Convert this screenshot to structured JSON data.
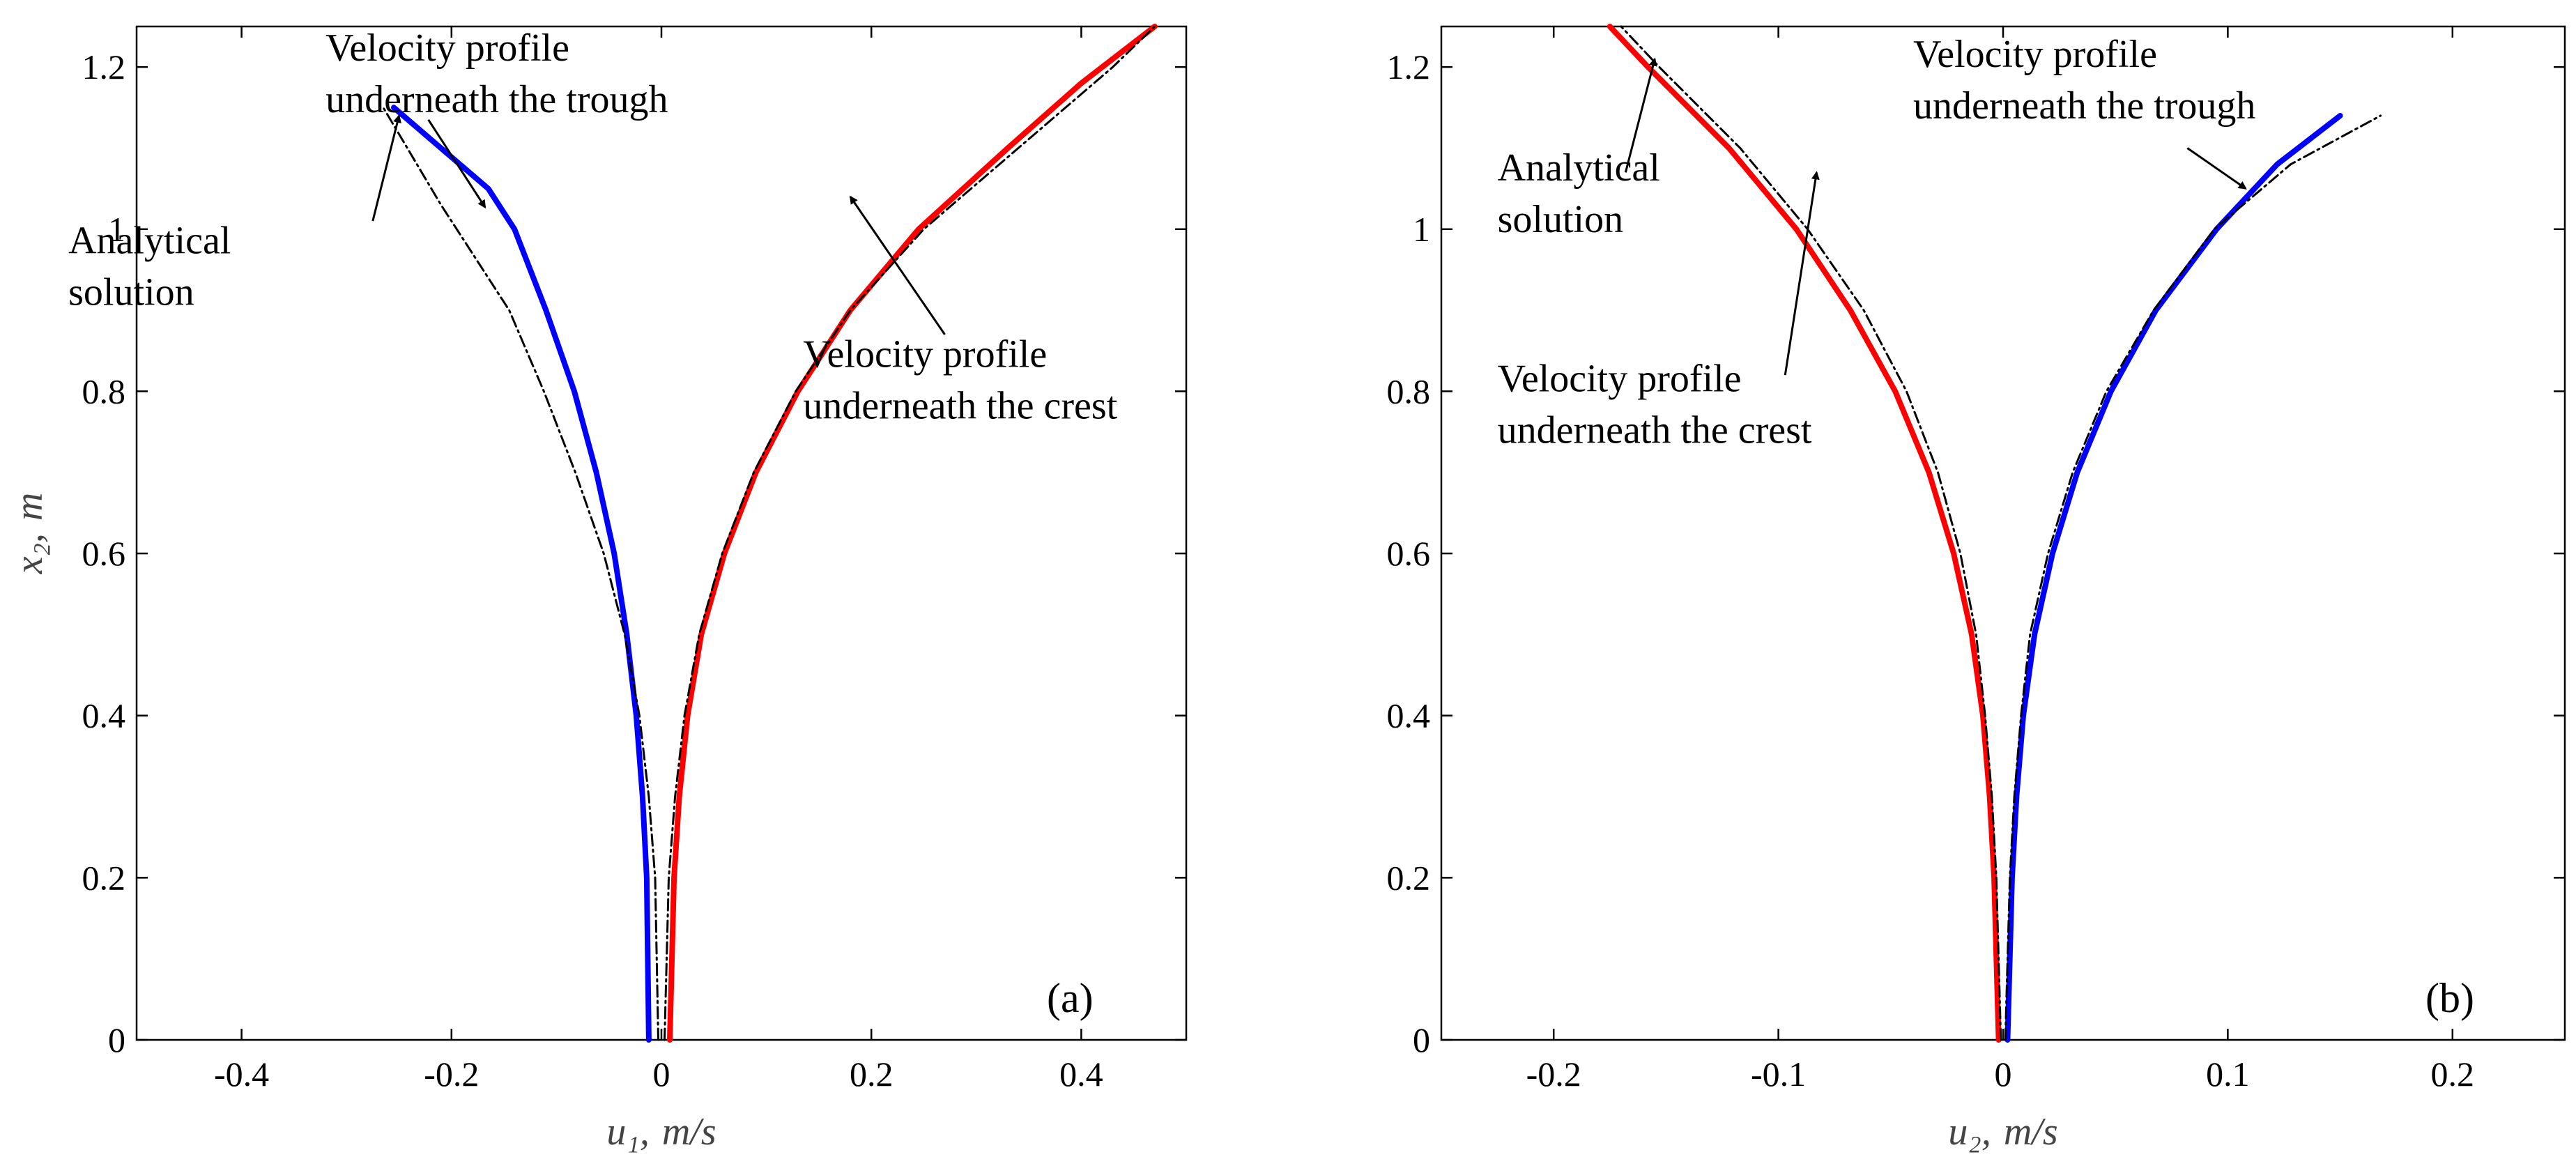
{
  "chart_data": [
    {
      "type": "line",
      "panel_label": "(a)",
      "xlabel": "u₁, m/s",
      "ylabel": "x₂, m",
      "xlim": [
        -0.5,
        0.5
      ],
      "ylim": [
        0,
        1.25
      ],
      "xticks": [
        -0.4,
        -0.2,
        0,
        0.2,
        0.4
      ],
      "xtick_labels": [
        "-0.4",
        "-0.2",
        "0",
        "0.2",
        "0.4"
      ],
      "yticks": [
        0,
        0.2,
        0.4,
        0.6,
        0.8,
        1.0,
        1.2
      ],
      "ytick_labels": [
        "0",
        "0.2",
        "0.4",
        "0.6",
        "0.8",
        "1",
        "1.2"
      ],
      "series": [
        {
          "role": "trough",
          "color": "#0000ff",
          "x": [
            -0.012,
            -0.014,
            -0.018,
            -0.024,
            -0.033,
            -0.045,
            -0.062,
            -0.083,
            -0.11,
            -0.14,
            -0.165,
            -0.21,
            -0.255
          ],
          "y": [
            0,
            0.2,
            0.3,
            0.4,
            0.5,
            0.6,
            0.7,
            0.8,
            0.9,
            1.0,
            1.05,
            1.1,
            1.15
          ]
        },
        {
          "role": "crest",
          "color": "#ff0000",
          "x": [
            0.008,
            0.012,
            0.017,
            0.025,
            0.038,
            0.06,
            0.09,
            0.13,
            0.18,
            0.245,
            0.33,
            0.4,
            0.47
          ],
          "y": [
            0,
            0.2,
            0.3,
            0.4,
            0.5,
            0.6,
            0.7,
            0.8,
            0.9,
            1.0,
            1.1,
            1.18,
            1.25
          ]
        },
        {
          "role": "analytical-trough",
          "color": "#000000",
          "dashed": true,
          "x": [
            -0.003,
            -0.006,
            -0.012,
            -0.021,
            -0.035,
            -0.055,
            -0.082,
            -0.112,
            -0.145,
            -0.21,
            -0.265
          ],
          "y": [
            0,
            0.2,
            0.3,
            0.4,
            0.5,
            0.6,
            0.7,
            0.8,
            0.9,
            1.03,
            1.15
          ]
        },
        {
          "role": "analytical-crest",
          "color": "#000000",
          "dashed": true,
          "x": [
            0.003,
            0.007,
            0.013,
            0.022,
            0.036,
            0.058,
            0.088,
            0.128,
            0.18,
            0.25,
            0.34,
            0.43,
            0.47
          ],
          "y": [
            0,
            0.2,
            0.3,
            0.4,
            0.5,
            0.6,
            0.7,
            0.8,
            0.9,
            1.0,
            1.1,
            1.2,
            1.25
          ]
        }
      ],
      "annotations": [
        {
          "text": [
            "Velocity profile",
            "underneath the trough"
          ],
          "tx": -0.32,
          "ty": 1.208,
          "ax": -0.168,
          "ay": 1.027,
          "hx": -0.222,
          "hy": 1.135
        },
        {
          "text": [
            "Analytical",
            "solution"
          ],
          "tx": -0.565,
          "ty": 0.97,
          "ax": -0.25,
          "ay": 1.14,
          "hx": -0.275,
          "hy": 1.01
        },
        {
          "text": [
            "Velocity profile",
            "underneath the crest"
          ],
          "tx": 0.135,
          "ty": 0.83,
          "ax": 0.18,
          "ay": 1.04,
          "hx": 0.27,
          "hy": 0.87
        }
      ]
    },
    {
      "type": "line",
      "panel_label": "(b)",
      "xlabel": "u₂, m/s",
      "ylabel": "",
      "xlim": [
        -0.25,
        0.25
      ],
      "ylim": [
        0,
        1.25
      ],
      "xticks": [
        -0.2,
        -0.1,
        0,
        0.1,
        0.2
      ],
      "xtick_labels": [
        "-0.2",
        "-0.1",
        "0",
        "0.1",
        "0.2"
      ],
      "yticks": [
        0,
        0.2,
        0.4,
        0.6,
        0.8,
        1.0,
        1.2
      ],
      "ytick_labels": [
        "0",
        "0.2",
        "0.4",
        "0.6",
        "0.8",
        "1",
        "1.2"
      ],
      "series": [
        {
          "role": "crest",
          "color": "#ff0000",
          "x": [
            -0.002,
            -0.004,
            -0.006,
            -0.009,
            -0.014,
            -0.022,
            -0.033,
            -0.048,
            -0.068,
            -0.092,
            -0.122,
            -0.158,
            -0.175
          ],
          "y": [
            0,
            0.2,
            0.3,
            0.4,
            0.5,
            0.6,
            0.7,
            0.8,
            0.9,
            1.0,
            1.1,
            1.2,
            1.25
          ]
        },
        {
          "role": "trough",
          "color": "#0000ff",
          "x": [
            0.002,
            0.004,
            0.006,
            0.009,
            0.014,
            0.022,
            0.033,
            0.048,
            0.068,
            0.095,
            0.122,
            0.15
          ],
          "y": [
            0,
            0.2,
            0.3,
            0.4,
            0.5,
            0.6,
            0.7,
            0.8,
            0.9,
            1.0,
            1.08,
            1.14
          ]
        },
        {
          "role": "analytical-crest",
          "color": "#000000",
          "dashed": true,
          "x": [
            -0.001,
            -0.003,
            -0.005,
            -0.008,
            -0.012,
            -0.019,
            -0.029,
            -0.043,
            -0.062,
            -0.087,
            -0.117,
            -0.153,
            -0.17
          ],
          "y": [
            0,
            0.2,
            0.3,
            0.4,
            0.5,
            0.6,
            0.7,
            0.8,
            0.9,
            1.0,
            1.1,
            1.2,
            1.25
          ]
        },
        {
          "role": "analytical-trough",
          "color": "#000000",
          "dashed": true,
          "x": [
            0.001,
            0.003,
            0.005,
            0.008,
            0.012,
            0.02,
            0.031,
            0.046,
            0.067,
            0.094,
            0.128,
            0.168
          ],
          "y": [
            0,
            0.2,
            0.3,
            0.4,
            0.5,
            0.6,
            0.7,
            0.8,
            0.9,
            1.0,
            1.08,
            1.14
          ]
        }
      ],
      "annotations": [
        {
          "text": [
            "Velocity profile",
            "underneath the trough"
          ],
          "tx": -0.04,
          "ty": 1.2,
          "ax": 0.108,
          "ay": 1.05,
          "hx": 0.082,
          "hy": 1.1
        },
        {
          "text": [
            "Analytical",
            "solution"
          ],
          "tx": -0.225,
          "ty": 1.06,
          "ax": -0.155,
          "ay": 1.21,
          "hx": -0.168,
          "hy": 1.07
        },
        {
          "text": [
            "Velocity profile",
            "underneath the crest"
          ],
          "tx": -0.225,
          "ty": 0.8,
          "ax": -0.083,
          "ay": 1.07,
          "hx": -0.097,
          "hy": 0.82
        }
      ]
    }
  ]
}
